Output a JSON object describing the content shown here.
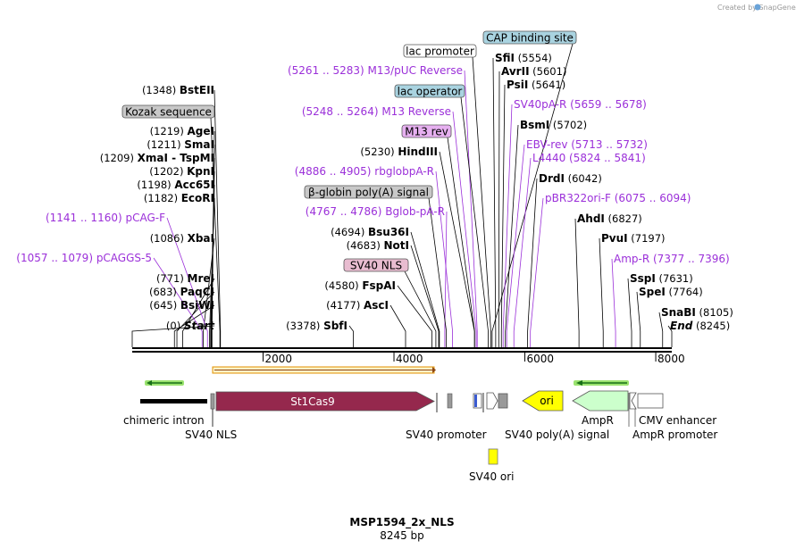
{
  "credit": "Created by SnapGene",
  "plasmid": {
    "name": "MSP1594_2x_NLS",
    "size_label": "8245 bp",
    "length": 8245
  },
  "colors": {
    "primer": "#9b30d9",
    "enzyme": "#000000",
    "line": "#000000",
    "st1cas9": "#95284d",
    "ori": "#ffff00",
    "ampr": "#ccffcc",
    "sv40ori": "#ffff00"
  },
  "ruler": {
    "ticks": [
      {
        "label": "2000",
        "bp": 2000
      },
      {
        "label": "4000",
        "bp": 4000
      },
      {
        "label": "6000",
        "bp": 6000
      },
      {
        "label": "8000",
        "bp": 8000
      }
    ]
  },
  "features_top": [
    {
      "name": "CAP binding site",
      "bp": 5500,
      "fill": "#a9d3e0"
    },
    {
      "name": "lac promoter",
      "bp": 5480,
      "fill": "#ffffff"
    },
    {
      "name": "lac operator",
      "bp": 5440,
      "fill": "#a9d3e0"
    },
    {
      "name": "M13 rev",
      "bp": 5232,
      "fill": "#e6b0f0"
    },
    {
      "name": "β-globin poly(A) signal",
      "bp": 4800,
      "fill": "#c8c8c8"
    },
    {
      "name": "SV40 NLS",
      "bp": 4640,
      "fill": "#e8bcd0"
    },
    {
      "name": "Kozak sequence",
      "bp": 1340,
      "fill": "#c8c8c8"
    }
  ],
  "enzymes_left": [
    {
      "pos": "(1348)",
      "name": "BstEII",
      "bp": 1348
    },
    {
      "pos": "(1219)",
      "name": "AgeI",
      "bp": 1219
    },
    {
      "pos": "(1211)",
      "name": "SmaI",
      "bp": 1211
    },
    {
      "pos": "(1209)",
      "name": "XmaI  -  TspMI",
      "bp": 1209
    },
    {
      "pos": "(1202)",
      "name": "KpnI",
      "bp": 1202
    },
    {
      "pos": "(1198)",
      "name": "Acc65I",
      "bp": 1198
    },
    {
      "pos": "(1182)",
      "name": "EcoRI",
      "bp": 1182
    },
    {
      "pos": "(1086)",
      "name": "XbaI",
      "bp": 1086
    },
    {
      "pos": "(771)",
      "name": "MreI",
      "bp": 771
    },
    {
      "pos": "(683)",
      "name": "PaqCI",
      "bp": 683
    },
    {
      "pos": "(645)",
      "name": "BsiWI",
      "bp": 645
    },
    {
      "pos": "(0)",
      "name": "Start",
      "bp": 0
    }
  ],
  "primers_left": [
    {
      "pos": "(1141 .. 1160)",
      "name": "pCAG-F",
      "bp": 1150
    },
    {
      "pos": "(1057 .. 1079)",
      "name": "pCAGGS-5",
      "bp": 1068
    }
  ],
  "enzymes_mid": [
    {
      "pos": "(5230)",
      "name": "HindIII",
      "bp": 5230
    },
    {
      "pos": "(4694)",
      "name": "Bsu36I",
      "bp": 4694
    },
    {
      "pos": "(4683)",
      "name": "NotI",
      "bp": 4683
    },
    {
      "pos": "(4580)",
      "name": "FspAI",
      "bp": 4580
    },
    {
      "pos": "(4177)",
      "name": "AscI",
      "bp": 4177
    },
    {
      "pos": "(3378)",
      "name": "SbfI",
      "bp": 3378
    }
  ],
  "primers_mid": [
    {
      "pos": "(5261 .. 5283)",
      "name": "M13/pUC Reverse",
      "bp": 5272
    },
    {
      "pos": "(5248 .. 5264)",
      "name": "M13 Reverse",
      "bp": 5256
    },
    {
      "pos": "(4886 .. 4905)",
      "name": "rbglobpA-R",
      "bp": 4895
    },
    {
      "pos": "(4767 .. 4786)",
      "name": "Bglob-pA-R",
      "bp": 4776
    }
  ],
  "enzymes_right": [
    {
      "name": "SfiI",
      "pos": "(5554)",
      "bp": 5554
    },
    {
      "name": "AvrII",
      "pos": "(5601)",
      "bp": 5601
    },
    {
      "name": "PsiI",
      "pos": "(5641)",
      "bp": 5641
    },
    {
      "name": "BsmI",
      "pos": "(5702)",
      "bp": 5702
    },
    {
      "name": "DrdI",
      "pos": "(6042)",
      "bp": 6042
    },
    {
      "name": "AhdI",
      "pos": "(6827)",
      "bp": 6827
    },
    {
      "name": "PvuI",
      "pos": "(7197)",
      "bp": 7197
    },
    {
      "name": "SspI",
      "pos": "(7631)",
      "bp": 7631
    },
    {
      "name": "SpeI",
      "pos": "(7764)",
      "bp": 7764
    },
    {
      "name": "SnaBI",
      "pos": "(8105)",
      "bp": 8105
    },
    {
      "name": "End",
      "pos": "(8245)",
      "bp": 8245
    }
  ],
  "primers_right": [
    {
      "name": "SV40pA-R",
      "pos": "(5659 .. 5678)",
      "bp": 5668
    },
    {
      "name": "EBV-rev",
      "pos": "(5713 .. 5732)",
      "bp": 5722
    },
    {
      "name": "L4440",
      "pos": "(5824 .. 5841)",
      "bp": 5832
    },
    {
      "name": "pBR322ori-F",
      "pos": "(6075 .. 6094)",
      "bp": 6084
    },
    {
      "name": "Amp-R",
      "pos": "(7377 .. 7396)",
      "bp": 7386
    }
  ],
  "features_bottom": {
    "st1cas9": "St1Cas9",
    "ori": "ori",
    "labels": {
      "chimeric_intron": "chimeric intron",
      "sv40_nls": "SV40 NLS",
      "sv40_promoter": "SV40 promoter",
      "sv40_polya": "SV40 poly(A) signal",
      "sv40_ori": "SV40 ori",
      "ampr": "AmpR",
      "ampr_promoter": "AmpR promoter",
      "cmv_enhancer": "CMV enhancer"
    }
  }
}
